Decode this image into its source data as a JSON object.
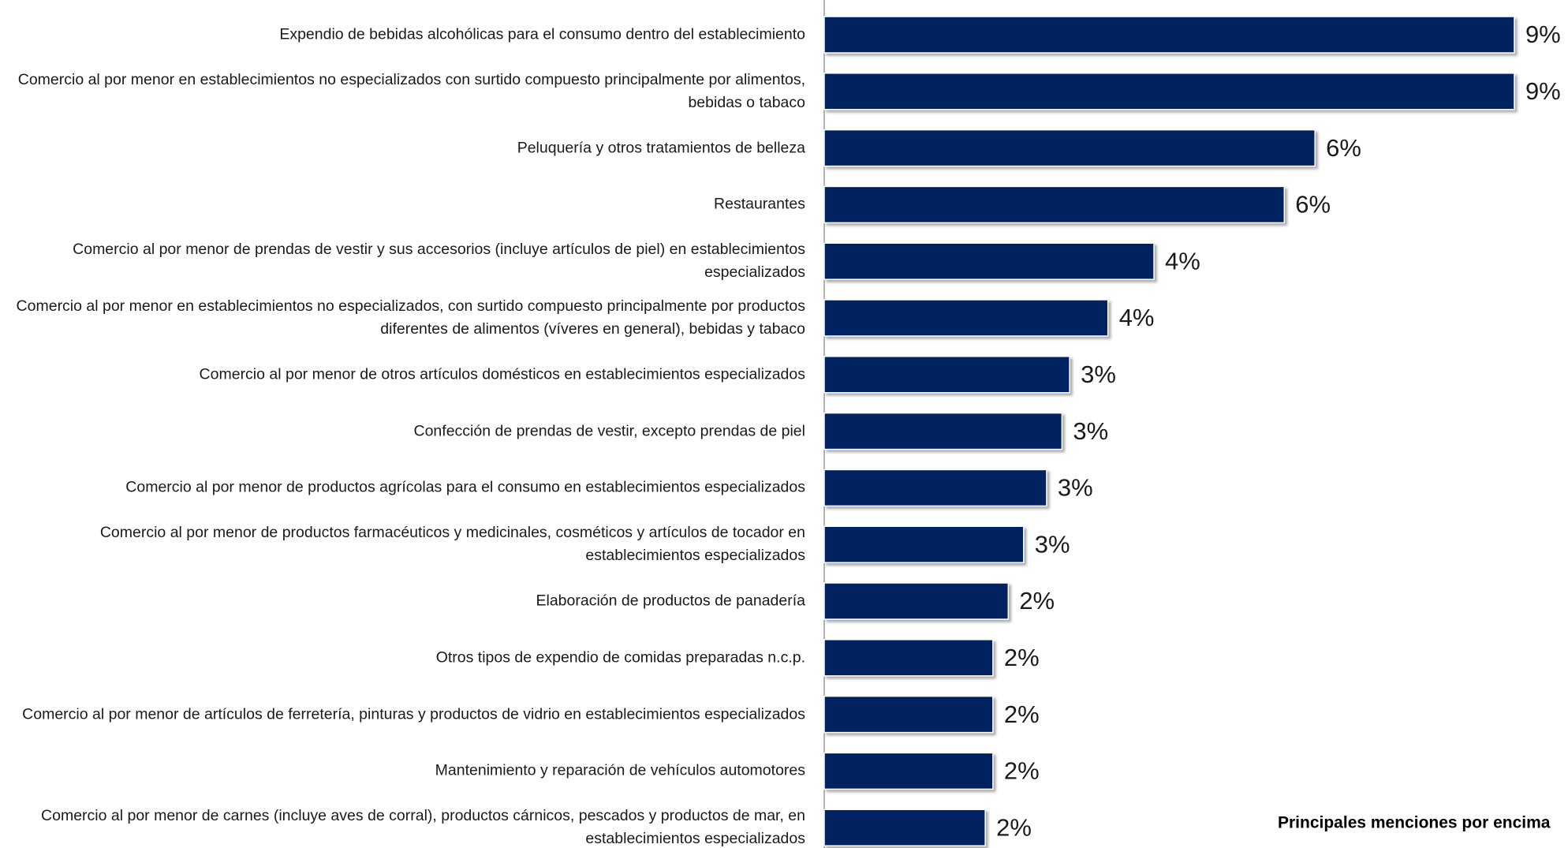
{
  "chart_data": {
    "type": "bar",
    "orientation": "horizontal",
    "categories": [
      "Expendio de bebidas alcohólicas para el consumo dentro del establecimiento",
      "Comercio al por menor en establecimientos no especializados con surtido compuesto principalmente por alimentos, bebidas o tabaco",
      "Peluquería y otros tratamientos de belleza",
      "Restaurantes",
      "Comercio al por menor de prendas de vestir y sus accesorios (incluye artículos de piel) en establecimientos especializados",
      "Comercio al por menor en establecimientos no especializados, con surtido compuesto principalmente por productos diferentes de alimentos (víveres en general), bebidas y tabaco",
      "Comercio al por menor de otros artículos domésticos en establecimientos especializados",
      "Confección de prendas de vestir, excepto prendas de piel",
      "Comercio al por menor de productos agrícolas para el consumo en establecimientos especializados",
      "Comercio al por menor de productos farmacéuticos y medicinales, cosméticos y artículos de tocador en establecimientos especializados",
      "Elaboración de productos de panadería",
      "Otros tipos de expendio de comidas preparadas n.c.p.",
      "Comercio al por menor de artículos de ferretería, pinturas y productos de vidrio en establecimientos especializados",
      "Mantenimiento y reparación de vehículos automotores",
      "Comercio al por menor de carnes (incluye aves de corral), productos cárnicos, pescados y productos de mar, en establecimientos especializados"
    ],
    "values": [
      9.0,
      9.0,
      6.4,
      6.0,
      4.3,
      3.7,
      3.2,
      3.1,
      2.9,
      2.6,
      2.4,
      2.2,
      2.2,
      2.2,
      2.1
    ],
    "value_labels": [
      "9%",
      "9%",
      "6%",
      "6%",
      "4%",
      "4%",
      "3%",
      "3%",
      "3%",
      "3%",
      "2%",
      "2%",
      "2%",
      "2%",
      "2%"
    ],
    "color": "#002060",
    "xlim": [
      0,
      9.7
    ],
    "annotation": "Principales menciones por encima"
  }
}
